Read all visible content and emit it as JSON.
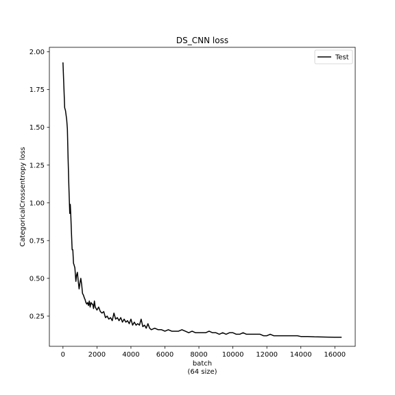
{
  "chart_data": {
    "type": "line",
    "title": "DS_CNN loss",
    "xlabel": "batch",
    "xlabel_line2": "(64 size)",
    "ylabel": "CategoricalCrossentropy loss",
    "xlim": [
      -800,
      17200
    ],
    "ylim": [
      0.05,
      2.03
    ],
    "xticks": [
      0,
      2000,
      4000,
      6000,
      8000,
      10000,
      12000,
      14000,
      16000
    ],
    "xtick_labels": [
      "0",
      "2000",
      "4000",
      "6000",
      "8000",
      "10000",
      "12000",
      "14000",
      "16000"
    ],
    "yticks": [
      0.25,
      0.5,
      0.75,
      1.0,
      1.25,
      1.5,
      1.75,
      2.0
    ],
    "ytick_labels": [
      "0.25",
      "0.50",
      "0.75",
      "1.00",
      "1.25",
      "1.50",
      "1.75",
      "2.00"
    ],
    "grid": false,
    "legend_position": "top-right",
    "series": [
      {
        "name": "Test",
        "color": "#000000",
        "x": [
          0,
          100,
          150,
          220,
          260,
          300,
          350,
          400,
          430,
          460,
          500,
          540,
          580,
          620,
          650,
          700,
          760,
          800,
          850,
          900,
          950,
          1000,
          1050,
          1100,
          1150,
          1200,
          1260,
          1300,
          1350,
          1400,
          1450,
          1500,
          1550,
          1600,
          1650,
          1700,
          1750,
          1800,
          1850,
          1900,
          1950,
          2000,
          2100,
          2200,
          2300,
          2400,
          2500,
          2600,
          2700,
          2800,
          2900,
          3000,
          3100,
          3200,
          3300,
          3400,
          3500,
          3600,
          3700,
          3800,
          3900,
          4000,
          4100,
          4200,
          4300,
          4400,
          4500,
          4600,
          4700,
          4800,
          4900,
          5000,
          5100,
          5200,
          5400,
          5600,
          5800,
          6000,
          6200,
          6400,
          6600,
          6800,
          7000,
          7200,
          7400,
          7600,
          7800,
          8000,
          8200,
          8400,
          8600,
          8800,
          9000,
          9200,
          9400,
          9600,
          9800,
          10000,
          10200,
          10400,
          10600,
          10800,
          11000,
          11200,
          11400,
          11600,
          11800,
          12000,
          12200,
          12400,
          12600,
          12800,
          13000,
          13200,
          13400,
          13600,
          13800,
          14000,
          14400,
          14800,
          15200,
          15600,
          16000,
          16400
        ],
        "y": [
          1.93,
          1.63,
          1.61,
          1.55,
          1.49,
          1.3,
          1.1,
          0.93,
          0.99,
          0.92,
          0.8,
          0.69,
          0.69,
          0.6,
          0.59,
          0.57,
          0.48,
          0.52,
          0.54,
          0.48,
          0.43,
          0.47,
          0.5,
          0.46,
          0.4,
          0.39,
          0.37,
          0.36,
          0.34,
          0.33,
          0.34,
          0.32,
          0.35,
          0.31,
          0.34,
          0.33,
          0.33,
          0.3,
          0.35,
          0.31,
          0.3,
          0.29,
          0.31,
          0.28,
          0.27,
          0.28,
          0.24,
          0.25,
          0.23,
          0.24,
          0.22,
          0.27,
          0.23,
          0.24,
          0.22,
          0.24,
          0.21,
          0.23,
          0.21,
          0.22,
          0.2,
          0.23,
          0.19,
          0.21,
          0.19,
          0.2,
          0.19,
          0.23,
          0.18,
          0.19,
          0.17,
          0.2,
          0.17,
          0.16,
          0.17,
          0.16,
          0.16,
          0.15,
          0.16,
          0.15,
          0.15,
          0.15,
          0.16,
          0.15,
          0.14,
          0.15,
          0.14,
          0.14,
          0.14,
          0.14,
          0.15,
          0.14,
          0.14,
          0.13,
          0.14,
          0.13,
          0.14,
          0.14,
          0.13,
          0.13,
          0.14,
          0.13,
          0.13,
          0.13,
          0.13,
          0.13,
          0.12,
          0.12,
          0.13,
          0.12,
          0.12,
          0.12,
          0.12,
          0.12,
          0.12,
          0.12,
          0.12,
          0.115,
          0.115,
          0.113,
          0.112,
          0.111,
          0.11,
          0.11
        ]
      }
    ]
  }
}
